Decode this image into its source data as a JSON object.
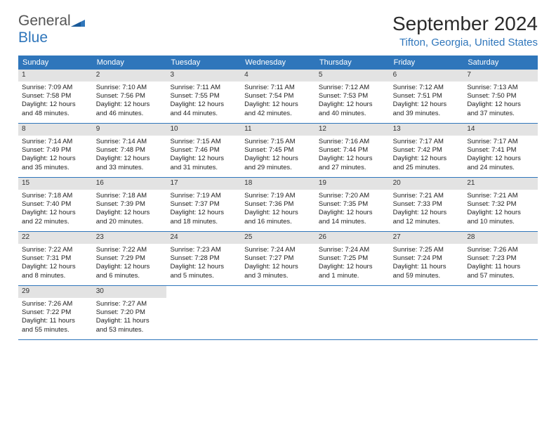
{
  "brand": {
    "word1": "General",
    "word2": "Blue"
  },
  "title": "September 2024",
  "location": "Tifton, Georgia, United States",
  "colors": {
    "header_bg": "#2f76bb",
    "header_text": "#ffffff",
    "daynum_bg": "#e3e3e3",
    "row_border": "#2f76bb",
    "body_text": "#222222",
    "title_text": "#2b2b2b",
    "location_text": "#2f76bb",
    "logo_gray": "#555555",
    "logo_blue": "#2f76bb",
    "page_bg": "#ffffff"
  },
  "typography": {
    "title_fontsize": 28,
    "location_fontsize": 15,
    "header_fontsize": 11,
    "daynum_fontsize": 10,
    "cell_fontsize": 9.5
  },
  "dayNames": [
    "Sunday",
    "Monday",
    "Tuesday",
    "Wednesday",
    "Thursday",
    "Friday",
    "Saturday"
  ],
  "days": [
    {
      "n": "1",
      "sunrise": "Sunrise: 7:09 AM",
      "sunset": "Sunset: 7:58 PM",
      "dl1": "Daylight: 12 hours",
      "dl2": "and 48 minutes."
    },
    {
      "n": "2",
      "sunrise": "Sunrise: 7:10 AM",
      "sunset": "Sunset: 7:56 PM",
      "dl1": "Daylight: 12 hours",
      "dl2": "and 46 minutes."
    },
    {
      "n": "3",
      "sunrise": "Sunrise: 7:11 AM",
      "sunset": "Sunset: 7:55 PM",
      "dl1": "Daylight: 12 hours",
      "dl2": "and 44 minutes."
    },
    {
      "n": "4",
      "sunrise": "Sunrise: 7:11 AM",
      "sunset": "Sunset: 7:54 PM",
      "dl1": "Daylight: 12 hours",
      "dl2": "and 42 minutes."
    },
    {
      "n": "5",
      "sunrise": "Sunrise: 7:12 AM",
      "sunset": "Sunset: 7:53 PM",
      "dl1": "Daylight: 12 hours",
      "dl2": "and 40 minutes."
    },
    {
      "n": "6",
      "sunrise": "Sunrise: 7:12 AM",
      "sunset": "Sunset: 7:51 PM",
      "dl1": "Daylight: 12 hours",
      "dl2": "and 39 minutes."
    },
    {
      "n": "7",
      "sunrise": "Sunrise: 7:13 AM",
      "sunset": "Sunset: 7:50 PM",
      "dl1": "Daylight: 12 hours",
      "dl2": "and 37 minutes."
    },
    {
      "n": "8",
      "sunrise": "Sunrise: 7:14 AM",
      "sunset": "Sunset: 7:49 PM",
      "dl1": "Daylight: 12 hours",
      "dl2": "and 35 minutes."
    },
    {
      "n": "9",
      "sunrise": "Sunrise: 7:14 AM",
      "sunset": "Sunset: 7:48 PM",
      "dl1": "Daylight: 12 hours",
      "dl2": "and 33 minutes."
    },
    {
      "n": "10",
      "sunrise": "Sunrise: 7:15 AM",
      "sunset": "Sunset: 7:46 PM",
      "dl1": "Daylight: 12 hours",
      "dl2": "and 31 minutes."
    },
    {
      "n": "11",
      "sunrise": "Sunrise: 7:15 AM",
      "sunset": "Sunset: 7:45 PM",
      "dl1": "Daylight: 12 hours",
      "dl2": "and 29 minutes."
    },
    {
      "n": "12",
      "sunrise": "Sunrise: 7:16 AM",
      "sunset": "Sunset: 7:44 PM",
      "dl1": "Daylight: 12 hours",
      "dl2": "and 27 minutes."
    },
    {
      "n": "13",
      "sunrise": "Sunrise: 7:17 AM",
      "sunset": "Sunset: 7:42 PM",
      "dl1": "Daylight: 12 hours",
      "dl2": "and 25 minutes."
    },
    {
      "n": "14",
      "sunrise": "Sunrise: 7:17 AM",
      "sunset": "Sunset: 7:41 PM",
      "dl1": "Daylight: 12 hours",
      "dl2": "and 24 minutes."
    },
    {
      "n": "15",
      "sunrise": "Sunrise: 7:18 AM",
      "sunset": "Sunset: 7:40 PM",
      "dl1": "Daylight: 12 hours",
      "dl2": "and 22 minutes."
    },
    {
      "n": "16",
      "sunrise": "Sunrise: 7:18 AM",
      "sunset": "Sunset: 7:39 PM",
      "dl1": "Daylight: 12 hours",
      "dl2": "and 20 minutes."
    },
    {
      "n": "17",
      "sunrise": "Sunrise: 7:19 AM",
      "sunset": "Sunset: 7:37 PM",
      "dl1": "Daylight: 12 hours",
      "dl2": "and 18 minutes."
    },
    {
      "n": "18",
      "sunrise": "Sunrise: 7:19 AM",
      "sunset": "Sunset: 7:36 PM",
      "dl1": "Daylight: 12 hours",
      "dl2": "and 16 minutes."
    },
    {
      "n": "19",
      "sunrise": "Sunrise: 7:20 AM",
      "sunset": "Sunset: 7:35 PM",
      "dl1": "Daylight: 12 hours",
      "dl2": "and 14 minutes."
    },
    {
      "n": "20",
      "sunrise": "Sunrise: 7:21 AM",
      "sunset": "Sunset: 7:33 PM",
      "dl1": "Daylight: 12 hours",
      "dl2": "and 12 minutes."
    },
    {
      "n": "21",
      "sunrise": "Sunrise: 7:21 AM",
      "sunset": "Sunset: 7:32 PM",
      "dl1": "Daylight: 12 hours",
      "dl2": "and 10 minutes."
    },
    {
      "n": "22",
      "sunrise": "Sunrise: 7:22 AM",
      "sunset": "Sunset: 7:31 PM",
      "dl1": "Daylight: 12 hours",
      "dl2": "and 8 minutes."
    },
    {
      "n": "23",
      "sunrise": "Sunrise: 7:22 AM",
      "sunset": "Sunset: 7:29 PM",
      "dl1": "Daylight: 12 hours",
      "dl2": "and 6 minutes."
    },
    {
      "n": "24",
      "sunrise": "Sunrise: 7:23 AM",
      "sunset": "Sunset: 7:28 PM",
      "dl1": "Daylight: 12 hours",
      "dl2": "and 5 minutes."
    },
    {
      "n": "25",
      "sunrise": "Sunrise: 7:24 AM",
      "sunset": "Sunset: 7:27 PM",
      "dl1": "Daylight: 12 hours",
      "dl2": "and 3 minutes."
    },
    {
      "n": "26",
      "sunrise": "Sunrise: 7:24 AM",
      "sunset": "Sunset: 7:25 PM",
      "dl1": "Daylight: 12 hours",
      "dl2": "and 1 minute."
    },
    {
      "n": "27",
      "sunrise": "Sunrise: 7:25 AM",
      "sunset": "Sunset: 7:24 PM",
      "dl1": "Daylight: 11 hours",
      "dl2": "and 59 minutes."
    },
    {
      "n": "28",
      "sunrise": "Sunrise: 7:26 AM",
      "sunset": "Sunset: 7:23 PM",
      "dl1": "Daylight: 11 hours",
      "dl2": "and 57 minutes."
    },
    {
      "n": "29",
      "sunrise": "Sunrise: 7:26 AM",
      "sunset": "Sunset: 7:22 PM",
      "dl1": "Daylight: 11 hours",
      "dl2": "and 55 minutes."
    },
    {
      "n": "30",
      "sunrise": "Sunrise: 7:27 AM",
      "sunset": "Sunset: 7:20 PM",
      "dl1": "Daylight: 11 hours",
      "dl2": "and 53 minutes."
    }
  ]
}
